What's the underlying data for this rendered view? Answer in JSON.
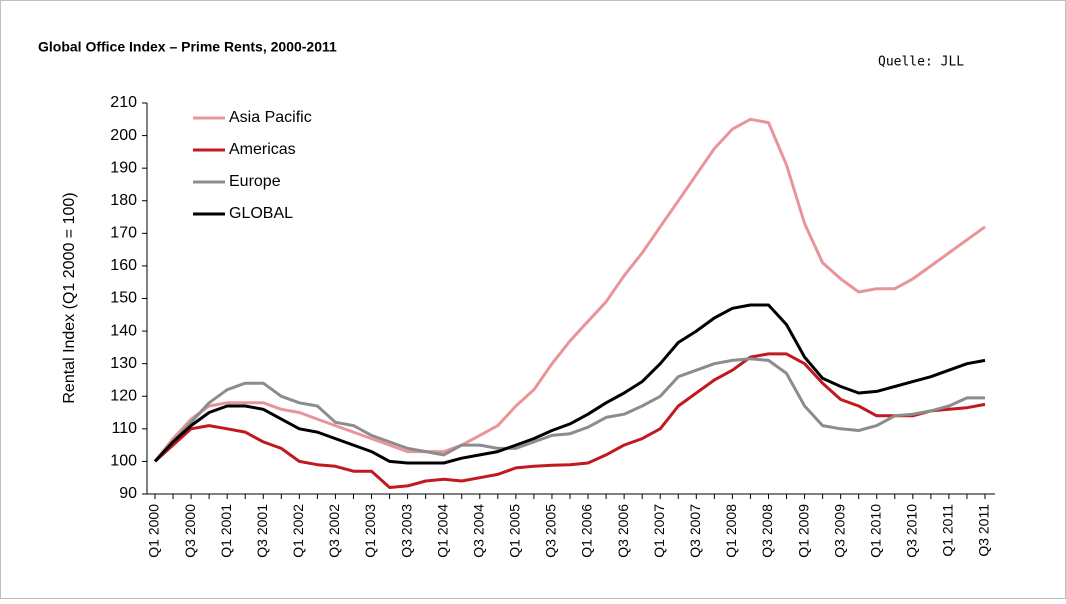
{
  "chart_data": {
    "type": "line",
    "title": "Global Office Index – Prime Rents, 2000-2011",
    "source": "Quelle: JLL",
    "y_label": "Rental Index (Q1 2000 = 100)",
    "categories": [
      "Q1 2000",
      null,
      "Q3 2000",
      null,
      "Q1 2001",
      null,
      "Q3 2001",
      null,
      "Q1 2002",
      null,
      "Q3 2002",
      null,
      "Q1 2003",
      null,
      "Q3 2003",
      null,
      "Q1 2004",
      null,
      "Q3 2004",
      null,
      "Q1 2005",
      null,
      "Q3 2005",
      null,
      "Q1 2006",
      null,
      "Q3 2006",
      null,
      "Q1 2007",
      null,
      "Q3 2007",
      null,
      "Q1 2008",
      null,
      "Q3 2008",
      null,
      "Q1 2009",
      null,
      "Q3 2009",
      null,
      "Q1 2010",
      null,
      "Q3 2010",
      null,
      "Q1 2011",
      null,
      "Q3 2011"
    ],
    "series": [
      {
        "name": "Asia Pacific",
        "color": "#e8959a",
        "values": [
          100,
          107,
          113,
          117,
          118,
          118,
          118,
          116,
          115,
          113,
          111,
          109,
          107,
          105,
          103,
          103,
          103,
          105,
          108,
          111,
          117,
          122,
          130,
          137,
          143,
          149,
          157,
          164,
          172,
          180,
          188,
          196,
          202,
          205,
          204,
          191,
          173,
          161,
          156,
          152,
          153,
          153,
          156,
          160,
          164,
          168,
          172
        ]
      },
      {
        "name": "Americas",
        "color": "#c0191f",
        "values": [
          100,
          105,
          110,
          111,
          110,
          109,
          106,
          104,
          100,
          99,
          98.5,
          97,
          97,
          92,
          92.5,
          94,
          94.5,
          94,
          95,
          96,
          98,
          98.5,
          98.8,
          99,
          99.5,
          102,
          105,
          107,
          110,
          117,
          121,
          125,
          128,
          132,
          133,
          133,
          130,
          124,
          119,
          117,
          114,
          114,
          114,
          115.5,
          116,
          116.5,
          117.5
        ]
      },
      {
        "name": "Europe",
        "color": "#8c8c8c",
        "values": [
          100,
          106,
          112,
          118,
          122,
          124,
          124,
          120,
          118,
          117,
          112,
          111,
          108,
          106,
          104,
          103,
          102,
          105,
          105,
          104,
          104,
          106,
          108,
          108.5,
          110.5,
          113.5,
          114.5,
          117,
          120,
          126,
          128,
          130,
          131,
          131.5,
          131,
          127,
          117,
          111,
          110,
          109.5,
          111,
          114,
          114.5,
          115.5,
          117,
          119.5,
          119.5
        ]
      },
      {
        "name": "GLOBAL",
        "color": "#000000",
        "values": [
          100,
          106,
          111,
          115,
          117,
          117,
          116,
          113,
          110,
          109,
          107,
          105,
          103,
          100,
          99.5,
          99.5,
          99.5,
          101,
          102,
          103,
          105,
          107,
          109.5,
          111.5,
          114.5,
          118,
          121,
          124.5,
          130,
          136.5,
          140,
          144,
          147,
          148,
          148,
          142,
          132,
          125.5,
          123,
          121,
          121.5,
          123,
          124.5,
          126,
          128,
          130,
          131
        ]
      }
    ],
    "ylim": [
      90,
      210
    ],
    "yticks": [
      90,
      100,
      110,
      120,
      130,
      140,
      150,
      160,
      170,
      180,
      190,
      200,
      210
    ],
    "legend": "upper left"
  }
}
